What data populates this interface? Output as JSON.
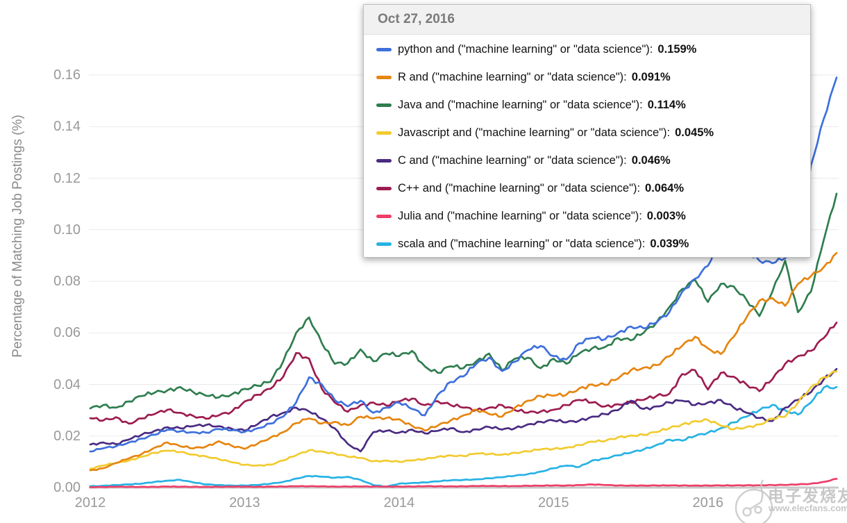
{
  "legend": {
    "header": "Oct 27, 2016",
    "rows": [
      {
        "key": "python",
        "label": "python and (\"machine learning\" or \"data science\"):",
        "value": "0.159%",
        "color": "#3E70DC"
      },
      {
        "key": "r",
        "label": "R and (\"machine learning\" or \"data science\"):",
        "value": "0.091%",
        "color": "#E6850F"
      },
      {
        "key": "java",
        "label": "Java and (\"machine learning\" or \"data science\"):",
        "value": "0.114%",
        "color": "#2E7D4E"
      },
      {
        "key": "javascript",
        "label": "Javascript and (\"machine learning\" or \"data science\"):",
        "value": "0.045%",
        "color": "#F2CB2F"
      },
      {
        "key": "c",
        "label": "C and (\"machine learning\" or \"data science\"):",
        "value": "0.046%",
        "color": "#4A2B82"
      },
      {
        "key": "cpp",
        "label": "C++ and (\"machine learning\" or \"data science\"):",
        "value": "0.064%",
        "color": "#9D1C4F"
      },
      {
        "key": "julia",
        "label": "Julia and (\"machine learning\" or \"data science\"):",
        "value": "0.003%",
        "color": "#ED3F68"
      },
      {
        "key": "scala",
        "label": "scala and (\"machine learning\" or \"data science\"):",
        "value": "0.039%",
        "color": "#27B2E5"
      }
    ]
  },
  "watermark": {
    "line1": "电子发烧友",
    "line2": "www.elecfans.com"
  },
  "chart_data": {
    "type": "line",
    "title": "",
    "xlabel": "",
    "ylabel": "Percentage of Matching Job Postings (%)",
    "xlim": [
      2012,
      2016.833
    ],
    "ylim": [
      0,
      0.16
    ],
    "grid": true,
    "legend_position": "top-right-overlay",
    "x_ticks": {
      "values": [
        2012,
        2013,
        2014,
        2015,
        2016
      ],
      "labels": [
        "2012",
        "2013",
        "2014",
        "2015",
        "2016"
      ]
    },
    "y_ticks": {
      "values": [
        0,
        0.02,
        0.04,
        0.06,
        0.08,
        0.1,
        0.12,
        0.14,
        0.16
      ],
      "labels": [
        "0.00",
        "0.02",
        "0.04",
        "0.06",
        "0.08",
        "0.10",
        "0.12",
        "0.14",
        "0.16"
      ]
    },
    "x": [
      2012,
      2012.083,
      2012.167,
      2012.25,
      2012.333,
      2012.417,
      2012.5,
      2012.583,
      2012.667,
      2012.75,
      2012.833,
      2012.917,
      2013,
      2013.083,
      2013.167,
      2013.25,
      2013.333,
      2013.417,
      2013.5,
      2013.583,
      2013.667,
      2013.75,
      2013.833,
      2013.917,
      2014,
      2014.083,
      2014.167,
      2014.25,
      2014.333,
      2014.417,
      2014.5,
      2014.583,
      2014.667,
      2014.75,
      2014.833,
      2014.917,
      2015,
      2015.083,
      2015.167,
      2015.25,
      2015.333,
      2015.417,
      2015.5,
      2015.583,
      2015.667,
      2015.75,
      2015.833,
      2015.917,
      2016,
      2016.083,
      2016.167,
      2016.25,
      2016.333,
      2016.417,
      2016.5,
      2016.583,
      2016.667,
      2016.75,
      2016.833
    ],
    "series": [
      {
        "key": "python",
        "name": "python and (\"machine learning\" or \"data science\")",
        "color": "#3E70DC",
        "values": [
          0.014,
          0.0152,
          0.016,
          0.0175,
          0.019,
          0.0205,
          0.0224,
          0.0218,
          0.0215,
          0.0213,
          0.0227,
          0.0222,
          0.0216,
          0.023,
          0.0248,
          0.0275,
          0.033,
          0.0428,
          0.04,
          0.034,
          0.0315,
          0.0337,
          0.029,
          0.031,
          0.033,
          0.0305,
          0.028,
          0.036,
          0.041,
          0.0431,
          0.048,
          0.0504,
          0.0452,
          0.0488,
          0.0533,
          0.0549,
          0.051,
          0.0497,
          0.056,
          0.058,
          0.0575,
          0.06,
          0.0625,
          0.0618,
          0.064,
          0.068,
          0.076,
          0.081,
          0.086,
          0.096,
          0.098,
          0.092,
          0.088,
          0.087,
          0.089,
          0.091,
          0.125,
          0.143,
          0.159
        ]
      },
      {
        "key": "r",
        "name": "R and (\"machine learning\" or \"data science\")",
        "color": "#E6850F",
        "values": [
          0.0067,
          0.0075,
          0.0095,
          0.0113,
          0.013,
          0.0155,
          0.0175,
          0.016,
          0.0152,
          0.0159,
          0.018,
          0.0162,
          0.015,
          0.017,
          0.0194,
          0.0215,
          0.025,
          0.0268,
          0.0248,
          0.0255,
          0.0242,
          0.0275,
          0.0268,
          0.027,
          0.0265,
          0.024,
          0.0221,
          0.024,
          0.026,
          0.028,
          0.0302,
          0.0285,
          0.0275,
          0.031,
          0.0337,
          0.0355,
          0.0356,
          0.036,
          0.0385,
          0.04,
          0.0398,
          0.0422,
          0.0455,
          0.0465,
          0.0475,
          0.0509,
          0.055,
          0.0585,
          0.054,
          0.0518,
          0.0585,
          0.066,
          0.0725,
          0.0735,
          0.0705,
          0.079,
          0.082,
          0.0855,
          0.091
        ]
      },
      {
        "key": "java",
        "name": "Java and (\"machine learning\" or \"data science\")",
        "color": "#2E7D4E",
        "values": [
          0.0307,
          0.032,
          0.031,
          0.0334,
          0.0355,
          0.0368,
          0.0377,
          0.039,
          0.037,
          0.0356,
          0.035,
          0.0362,
          0.0383,
          0.0395,
          0.041,
          0.049,
          0.06,
          0.066,
          0.056,
          0.048,
          0.0482,
          0.0536,
          0.049,
          0.052,
          0.051,
          0.053,
          0.047,
          0.0445,
          0.047,
          0.0463,
          0.049,
          0.052,
          0.0455,
          0.05,
          0.0504,
          0.0463,
          0.05,
          0.048,
          0.052,
          0.054,
          0.0545,
          0.058,
          0.0571,
          0.06,
          0.064,
          0.07,
          0.077,
          0.0805,
          0.072,
          0.079,
          0.078,
          0.0728,
          0.0665,
          0.076,
          0.088,
          0.068,
          0.076,
          0.096,
          0.114
        ]
      },
      {
        "key": "javascript",
        "name": "Javascript and (\"machine learning\" or \"data science\")",
        "color": "#F2CB2F",
        "values": [
          0.0073,
          0.0085,
          0.0095,
          0.0105,
          0.012,
          0.0135,
          0.0143,
          0.0138,
          0.0128,
          0.0121,
          0.011,
          0.0098,
          0.0088,
          0.0086,
          0.0089,
          0.0105,
          0.0125,
          0.0145,
          0.014,
          0.0132,
          0.012,
          0.0115,
          0.0102,
          0.0105,
          0.01,
          0.0105,
          0.011,
          0.012,
          0.0125,
          0.0122,
          0.0132,
          0.013,
          0.0128,
          0.0135,
          0.014,
          0.0148,
          0.015,
          0.0155,
          0.0165,
          0.0178,
          0.018,
          0.0195,
          0.0202,
          0.0205,
          0.0215,
          0.023,
          0.0245,
          0.0258,
          0.0262,
          0.024,
          0.0226,
          0.0235,
          0.0245,
          0.0267,
          0.0275,
          0.033,
          0.039,
          0.0428,
          0.045
        ]
      },
      {
        "key": "c",
        "name": "C and (\"machine learning\" or \"data science\")",
        "color": "#4A2B82",
        "values": [
          0.0167,
          0.0175,
          0.0168,
          0.0186,
          0.0205,
          0.022,
          0.0234,
          0.023,
          0.0238,
          0.0243,
          0.0238,
          0.0228,
          0.0221,
          0.0245,
          0.0275,
          0.029,
          0.031,
          0.0295,
          0.0267,
          0.023,
          0.017,
          0.014,
          0.0215,
          0.022,
          0.0213,
          0.0225,
          0.021,
          0.022,
          0.023,
          0.0215,
          0.0226,
          0.0235,
          0.0225,
          0.023,
          0.0245,
          0.0255,
          0.026,
          0.0253,
          0.026,
          0.0275,
          0.0285,
          0.03,
          0.0337,
          0.0305,
          0.0315,
          0.033,
          0.0337,
          0.032,
          0.033,
          0.034,
          0.031,
          0.029,
          0.027,
          0.0258,
          0.031,
          0.034,
          0.037,
          0.042,
          0.046
        ]
      },
      {
        "key": "cpp",
        "name": "C++ and (\"machine learning\" or \"data science\")",
        "color": "#9D1C4F",
        "values": [
          0.0269,
          0.026,
          0.0273,
          0.0248,
          0.0268,
          0.0285,
          0.0302,
          0.029,
          0.0278,
          0.0267,
          0.028,
          0.0295,
          0.0334,
          0.036,
          0.0383,
          0.043,
          0.0522,
          0.05,
          0.0383,
          0.033,
          0.0294,
          0.032,
          0.033,
          0.0318,
          0.0334,
          0.0345,
          0.032,
          0.0335,
          0.032,
          0.031,
          0.03,
          0.031,
          0.032,
          0.03,
          0.029,
          0.0295,
          0.0302,
          0.032,
          0.034,
          0.033,
          0.0315,
          0.0323,
          0.033,
          0.034,
          0.0355,
          0.0364,
          0.044,
          0.0455,
          0.038,
          0.0445,
          0.043,
          0.04,
          0.0374,
          0.042,
          0.048,
          0.051,
          0.053,
          0.058,
          0.064
        ]
      },
      {
        "key": "julia",
        "name": "Julia and (\"machine learning\" or \"data science\")",
        "color": "#ED3F68",
        "values": [
          0.0002,
          0.0002,
          0.0003,
          0.0003,
          0.0003,
          0.0003,
          0.0004,
          0.0003,
          0.0003,
          0.0003,
          0.0003,
          0.0003,
          0.0003,
          0.0003,
          0.0004,
          0.0004,
          0.0005,
          0.0005,
          0.0005,
          0.0004,
          0.0004,
          0.0004,
          0.0004,
          0.0004,
          0.0004,
          0.0004,
          0.0005,
          0.0005,
          0.0005,
          0.0005,
          0.0006,
          0.0006,
          0.0006,
          0.0006,
          0.0007,
          0.0007,
          0.0008,
          0.0008,
          0.001,
          0.0012,
          0.001,
          0.0008,
          0.0008,
          0.0008,
          0.0008,
          0.0008,
          0.0008,
          0.0008,
          0.0008,
          0.0008,
          0.0008,
          0.0009,
          0.0009,
          0.001,
          0.001,
          0.0012,
          0.0015,
          0.0022,
          0.0034
        ]
      },
      {
        "key": "scala",
        "name": "scala and (\"machine learning\" or \"data science\")",
        "color": "#27B2E5",
        "values": [
          0.0005,
          0.0007,
          0.001,
          0.0012,
          0.0015,
          0.0022,
          0.0027,
          0.003,
          0.002,
          0.0012,
          0.001,
          0.0008,
          0.0008,
          0.001,
          0.0015,
          0.0022,
          0.0035,
          0.0045,
          0.0042,
          0.0038,
          0.0042,
          0.003,
          0.001,
          0.0003,
          0.0015,
          0.0018,
          0.002,
          0.0024,
          0.0028,
          0.003,
          0.0032,
          0.0036,
          0.004,
          0.0046,
          0.0052,
          0.0062,
          0.0075,
          0.0085,
          0.008,
          0.0105,
          0.0113,
          0.0125,
          0.0135,
          0.0148,
          0.0165,
          0.0186,
          0.0182,
          0.02,
          0.0213,
          0.023,
          0.0253,
          0.0275,
          0.03,
          0.0321,
          0.03,
          0.0283,
          0.033,
          0.0388,
          0.039
        ]
      }
    ]
  }
}
